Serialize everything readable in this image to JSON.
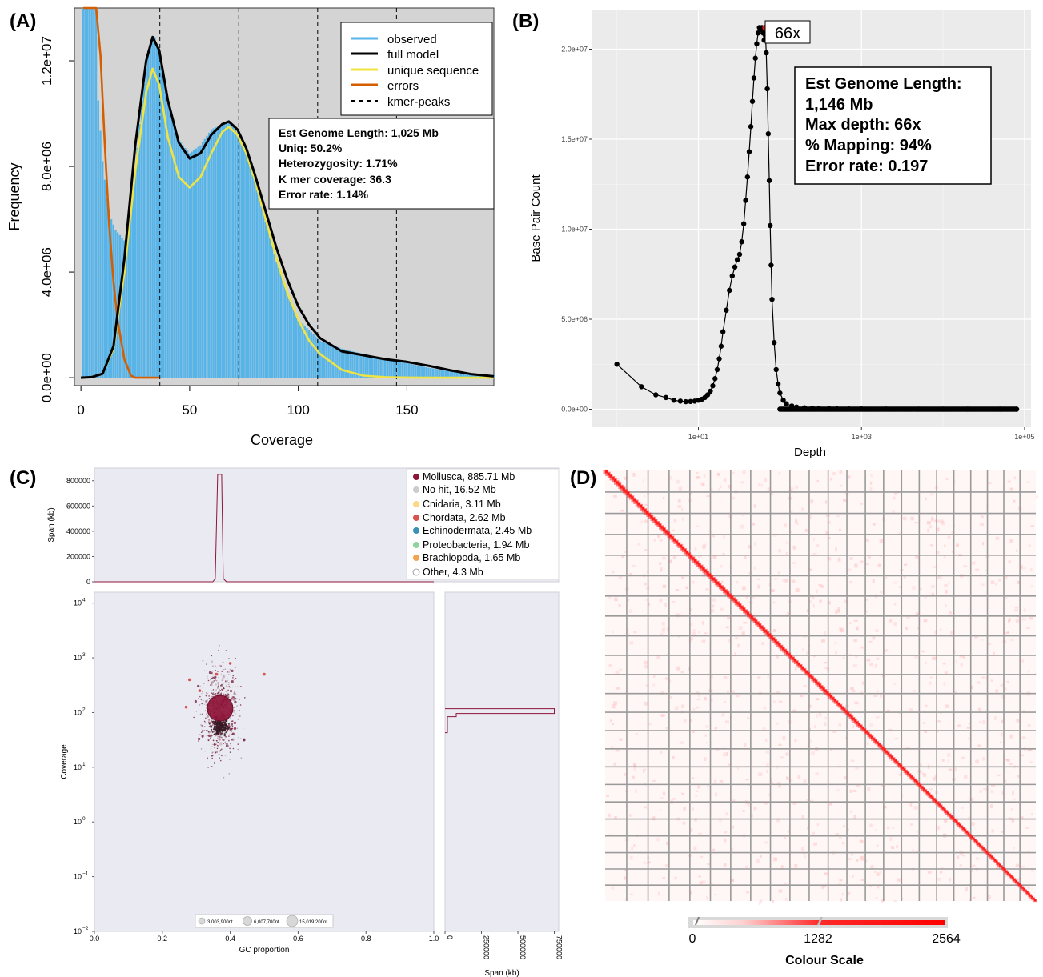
{
  "chart_data": [
    {
      "panel": "(A)",
      "type": "line",
      "xlabel": "Coverage",
      "ylabel": "Frequency",
      "xlim": [
        -3,
        190
      ],
      "ylim": [
        -300000,
        14000000
      ],
      "x_ticks": [
        0,
        50,
        100,
        150
      ],
      "y_ticks": [
        0,
        4000000,
        8000000,
        12000000
      ],
      "y_tick_labels": [
        "0.0e+00",
        "4.0e+06",
        "8.0e+06",
        "1.2e+07"
      ],
      "legend": [
        "observed",
        "full model",
        "unique sequence",
        "errors",
        "kmer-peaks"
      ],
      "legend_colors": [
        "#56b4e9",
        "#000000",
        "#f0e442",
        "#d55e00",
        "#000000"
      ],
      "legend_position": "top-right",
      "kmer_peaks": [
        36.3,
        72.6,
        108.9,
        145.2
      ],
      "annotation": [
        "Est Genome Length: 1,025 Mb",
        "Uniq: 50.2%",
        "Heterozygosity: 1.71%",
        "K mer coverage: 36.3",
        "Error rate: 1.14%"
      ],
      "series": [
        {
          "name": "observed",
          "x": [
            1,
            3,
            5,
            7,
            8,
            10,
            12,
            14,
            16,
            18,
            20,
            22,
            25,
            28,
            31,
            34,
            37,
            40,
            45,
            50,
            55,
            60,
            65,
            68,
            70,
            75,
            80,
            85,
            90,
            95,
            100,
            110,
            120,
            130,
            140,
            150,
            160,
            170,
            180,
            190
          ],
          "values": [
            14000000,
            14000000,
            14000000,
            14000000,
            10500000,
            8200000,
            6800000,
            6000000,
            5600000,
            5400000,
            5200000,
            5600000,
            7800000,
            10500000,
            12400000,
            12900000,
            12100000,
            10400000,
            9000000,
            8500000,
            8800000,
            9400000,
            9600000,
            9700000,
            9600000,
            8800000,
            7400000,
            5900000,
            4400000,
            3200000,
            2200000,
            1400000,
            1100000,
            900000,
            700000,
            550000,
            380000,
            240000,
            150000,
            100000
          ]
        },
        {
          "name": "full model",
          "x": [
            0,
            5,
            10,
            15,
            20,
            25,
            30,
            33,
            36,
            40,
            45,
            50,
            55,
            60,
            65,
            68,
            72,
            76,
            80,
            85,
            90,
            95,
            100,
            105,
            110,
            120,
            130,
            140,
            150,
            160,
            170,
            180,
            190
          ],
          "values": [
            0,
            20000,
            150000,
            1200000,
            4500000,
            8800000,
            12000000,
            12900000,
            12400000,
            10500000,
            8900000,
            8300000,
            8500000,
            9200000,
            9600000,
            9700000,
            9400000,
            8700000,
            7700000,
            6300000,
            4900000,
            3700000,
            2700000,
            2000000,
            1500000,
            1000000,
            850000,
            700000,
            600000,
            450000,
            280000,
            130000,
            50000
          ]
        },
        {
          "name": "unique sequence",
          "x": [
            0,
            5,
            10,
            15,
            20,
            25,
            30,
            33,
            36,
            40,
            45,
            50,
            55,
            60,
            65,
            68,
            72,
            76,
            80,
            85,
            90,
            95,
            100,
            105,
            110,
            120,
            130,
            140,
            150,
            160,
            170,
            180,
            190
          ],
          "values": [
            0,
            20000,
            150000,
            1100000,
            4000000,
            7800000,
            10800000,
            11700000,
            11100000,
            9100000,
            7600000,
            7200000,
            7600000,
            8500000,
            9300000,
            9500000,
            9200000,
            8500000,
            7500000,
            6000000,
            4500000,
            3200000,
            2200000,
            1400000,
            900000,
            300000,
            80000,
            20000,
            5000,
            0,
            0,
            0,
            0
          ]
        },
        {
          "name": "errors",
          "x": [
            1,
            3,
            5,
            7,
            9,
            11,
            13,
            15,
            17,
            20,
            23,
            25,
            30,
            36
          ],
          "values": [
            14000000,
            14000000,
            14000000,
            14000000,
            12200000,
            8800000,
            5800000,
            3600000,
            2100000,
            700000,
            80000,
            0,
            0,
            0
          ]
        }
      ]
    },
    {
      "panel": "(B)",
      "type": "scatter",
      "xlabel": "Depth",
      "ylabel": "Base Pair Count",
      "x_scale": "log",
      "xlim": [
        0.5,
        120000
      ],
      "ylim": [
        -1000000,
        22200000
      ],
      "x_tick_labels": [
        "1e+01",
        "1e+03",
        "1e+05"
      ],
      "y_tick_labels": [
        "0.0e+00",
        "5.0e+06",
        "1.0e+07",
        "1.5e+07",
        "2.0e+07"
      ],
      "peak_label": "66x",
      "peak": {
        "x": 66,
        "y": 21200000
      },
      "annotation": [
        "Est Genome Length:",
        "1,146 Mb",
        "Max depth: 66x",
        "% Mapping: 94%",
        "Error rate: 0.197"
      ],
      "x": [
        1,
        2,
        3,
        4,
        5,
        6,
        7,
        8,
        9,
        10,
        11,
        12,
        13,
        14,
        15,
        16,
        17,
        18,
        19,
        20,
        22,
        24,
        26,
        28,
        30,
        32,
        34,
        36,
        38,
        40,
        42,
        44,
        46,
        48,
        50,
        52,
        54,
        56,
        58,
        60,
        62,
        64,
        66,
        68,
        70,
        72,
        74,
        76,
        78,
        80,
        85,
        90,
        95,
        100,
        110,
        120,
        140,
        160,
        200,
        250,
        300,
        400,
        500,
        700,
        1000,
        2000,
        5000,
        10000,
        20000,
        50000,
        80000
      ],
      "values": [
        2500000,
        1250000,
        800000,
        650000,
        500000,
        450000,
        420000,
        430000,
        450000,
        500000,
        550000,
        650000,
        800000,
        1000000,
        1300000,
        1700000,
        2200000,
        2800000,
        3500000,
        4300000,
        5500000,
        6600000,
        7400000,
        7900000,
        8300000,
        8600000,
        9300000,
        10300000,
        11600000,
        12900000,
        14300000,
        15700000,
        17100000,
        18400000,
        19500000,
        20300000,
        20900000,
        21200000,
        21100000,
        21200000,
        20900000,
        20500000,
        21200000,
        19800000,
        17800000,
        15300000,
        12700000,
        10200000,
        8000000,
        6100000,
        3700000,
        2200000,
        1400000,
        900000,
        500000,
        300000,
        180000,
        120000,
        80000,
        60000,
        40000,
        30000,
        20000,
        15000,
        12000,
        8000,
        5000,
        3000,
        2000,
        1000,
        500
      ]
    },
    {
      "panel": "(C)",
      "type": "scatter",
      "xlabel": "GC proportion",
      "ylabel": "Coverage",
      "top_ylabel": "Span (kb)",
      "side_xlabel": "Span (kb)",
      "x_ticks": [
        0.0,
        0.2,
        0.4,
        0.6,
        0.8,
        1.0
      ],
      "y_scale": "log",
      "y_ticks_exp": [
        -2,
        -1,
        0,
        1,
        2,
        3,
        4
      ],
      "top_y_ticks": [
        0,
        200000,
        400000,
        600000,
        800000
      ],
      "side_x_ticks": [
        0,
        250000,
        500000,
        750000
      ],
      "main_cluster": {
        "gc": 0.37,
        "coverage": 120
      },
      "top_hist_peak": {
        "gc": 0.37,
        "span_kb": 850000
      },
      "side_hist_peak": {
        "coverage": 110,
        "span_kb": 750000
      },
      "size_legend": [
        "3,003,900nt",
        "6,007,700nt",
        "15,019,200nt"
      ],
      "legend_position": "top-right",
      "legend": [
        {
          "label": "Mollusca, 885.71 Mb",
          "color": "#8e1438"
        },
        {
          "label": "No hit, 16.52 Mb",
          "color": "#cccccc"
        },
        {
          "label": "Cnidaria, 3.11 Mb",
          "color": "#fbd883"
        },
        {
          "label": "Chordata, 2.62 Mb",
          "color": "#d9534f"
        },
        {
          "label": "Echinodermata, 2.45 Mb",
          "color": "#3a91b4"
        },
        {
          "label": "Proteobacteria, 1.94 Mb",
          "color": "#8fd49a"
        },
        {
          "label": "Brachiopoda, 1.65 Mb",
          "color": "#f2a451"
        },
        {
          "label": "Other, 4.3 Mb",
          "color": "#ffffff"
        }
      ]
    },
    {
      "panel": "(D)",
      "type": "heatmap",
      "scaffold_boundaries": 22,
      "colour_scale_label": "Colour Scale",
      "colour_scale_ticks": [
        "0",
        "1282",
        "2564"
      ],
      "colour_scale_range": [
        0,
        2564
      ]
    }
  ],
  "colors": {
    "observed": "#56b4e9",
    "full_model": "#000000",
    "unique": "#f0e442",
    "errors": "#d55e00",
    "panel_a_bg": "#d4d4d4",
    "panel_b_bg": "#ebebeb",
    "panel_c_bg": "#eaeaf2",
    "mollusca": "#8e1438",
    "hic_red": "#ff1a1a"
  }
}
